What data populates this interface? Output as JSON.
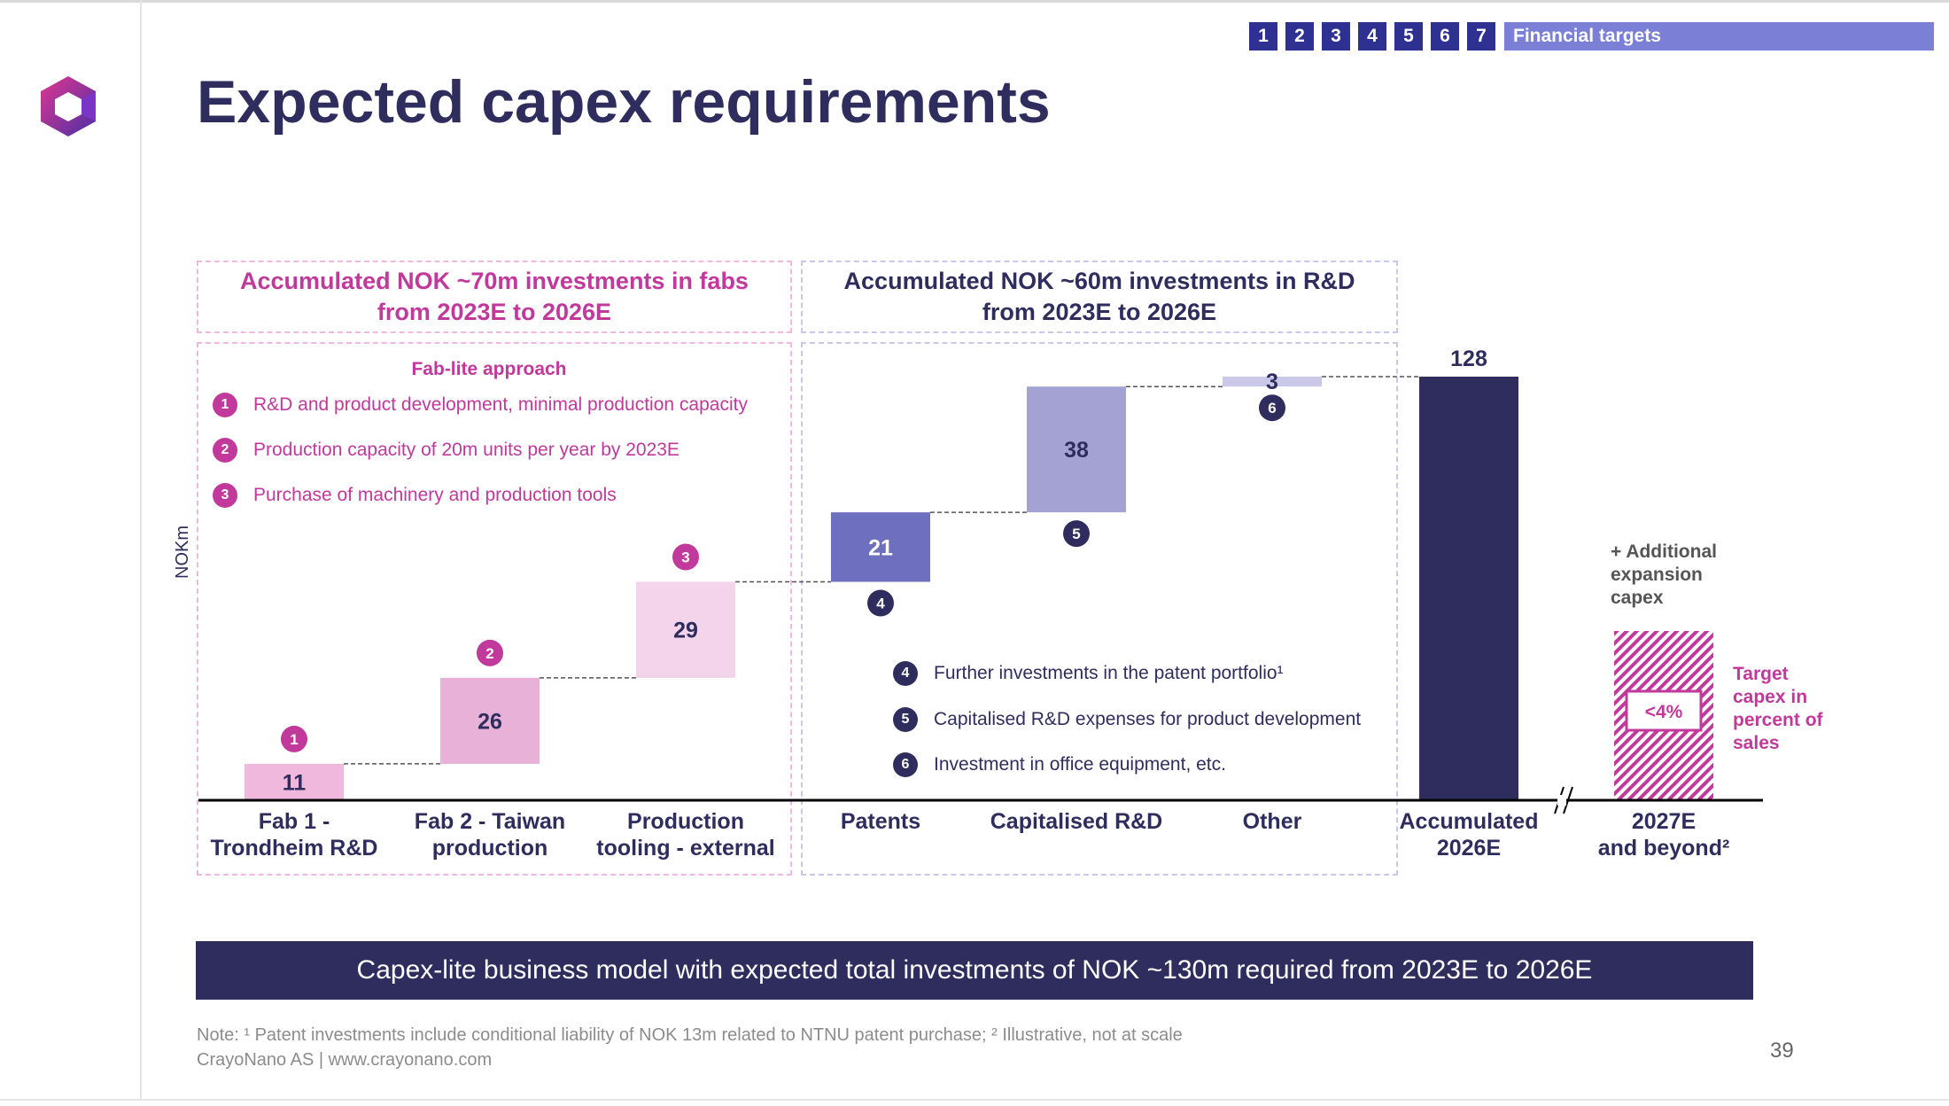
{
  "slide": {
    "title": "Expected capex requirements",
    "page_number": "39",
    "nav": {
      "numbers": [
        "1",
        "2",
        "3",
        "4",
        "5",
        "6",
        "7"
      ],
      "current_section": "Financial targets"
    },
    "banner": "Capex-lite business model with expected total investments of NOK ~130m required from 2023E to 2026E",
    "footnote_line1": "Note: ¹ Patent investments include conditional liability of NOK 13m related to NTNU patent purchase; ² Illustrative, not at scale",
    "footnote_line2": "CrayoNano AS | www.crayonano.com"
  },
  "sections": {
    "fabs_header_line1": "Accumulated NOK ~70m investments in fabs",
    "fabs_header_line2": "from 2023E to 2026E",
    "rd_header_line1": "Accumulated NOK ~60m investments in R&D",
    "rd_header_line2": "from 2023E to 2026E"
  },
  "fab_lite": {
    "title": "Fab-lite approach",
    "items": [
      {
        "num": "1",
        "text": "R&D and product development, minimal production capacity"
      },
      {
        "num": "2",
        "text": "Production capacity of 20m units per year by 2023E"
      },
      {
        "num": "3",
        "text": "Purchase of machinery and production tools"
      }
    ]
  },
  "rd_items": [
    {
      "num": "4",
      "text": "Further investments in the patent portfolio¹"
    },
    {
      "num": "5",
      "text": "Capitalised R&D expenses for product development"
    },
    {
      "num": "6",
      "text": "Investment in office equipment, etc."
    }
  ],
  "notes": {
    "additional_line1": "+ Additional",
    "additional_line2": "expansion",
    "additional_line3": "capex",
    "target_line1": "Target",
    "target_line2": "capex in",
    "target_line3": "percent of",
    "target_line4": "sales",
    "target_value": "<4%"
  },
  "colors": {
    "navy": "#2e2d5e",
    "pink_accent": "#c0399b",
    "fab1": "#f0b8dc",
    "fab2": "#e8b1d7",
    "fab3": "#f3d4ea",
    "patents": "#6e6fbe",
    "capitalised": "#a3a2d3",
    "other": "#c9c8e8",
    "total": "#2e2d5e"
  },
  "chart_data": {
    "type": "bar",
    "subtype": "waterfall",
    "ylabel": "NOKm",
    "categories": [
      [
        "Fab 1 -",
        "Trondheim R&D"
      ],
      [
        "Fab 2 - Taiwan",
        "production"
      ],
      [
        "Production",
        "tooling - external"
      ],
      [
        "Patents",
        ""
      ],
      [
        "Capitalised R&D",
        ""
      ],
      [
        "Other",
        ""
      ],
      [
        "Accumulated",
        "2026E"
      ],
      [
        "2027E",
        "and beyond²"
      ]
    ],
    "values": [
      11,
      26,
      29,
      21,
      38,
      3,
      128,
      null
    ],
    "labels": [
      "11",
      "26",
      "29",
      "21",
      "38",
      "3",
      "128",
      ""
    ],
    "markers": [
      "1",
      "2",
      "3",
      "4",
      "5",
      "6",
      "",
      ""
    ],
    "bar_kind": [
      "step",
      "step",
      "step",
      "step",
      "step",
      "step",
      "total",
      "illustrative"
    ],
    "ylim": [
      0,
      128
    ],
    "grid": false,
    "legend": "none"
  }
}
